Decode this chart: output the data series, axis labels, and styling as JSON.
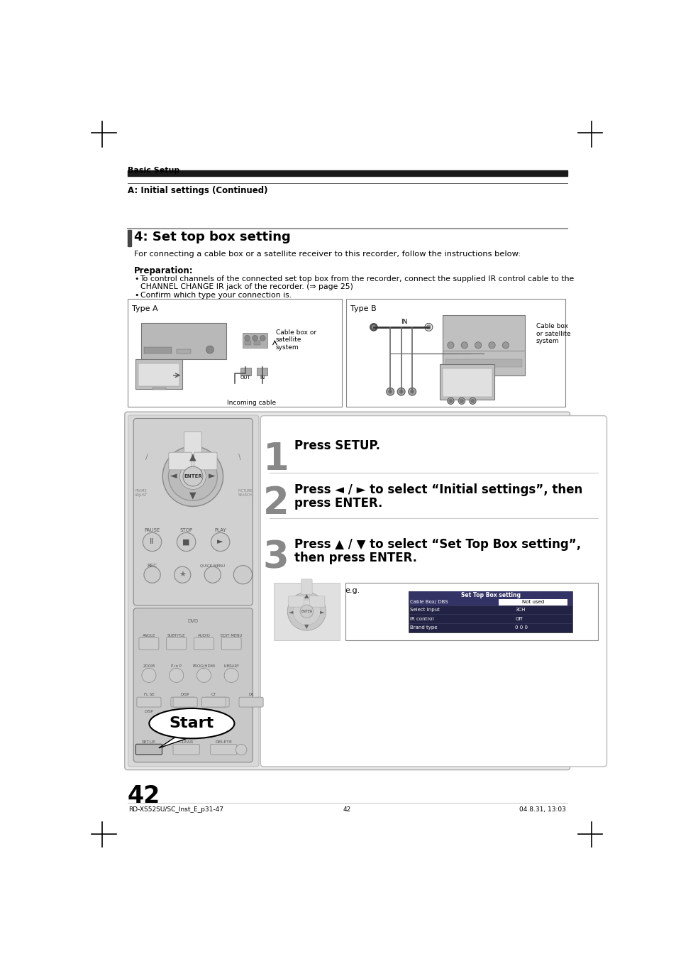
{
  "page_num": "42",
  "left_footer": "RD-XS52SU/SC_Inst_E_p31-47",
  "center_footer": "42",
  "right_footer": "04.8.31, 13:03",
  "section_title": "Basic Setup",
  "subsection_title": "A: Initial settings (Continued)",
  "heading": "4: Set top box setting",
  "heading_intro": "For connecting a cable box or a satellite receiver to this recorder, follow the instructions below:",
  "prep_title": "Preparation:",
  "prep_bullet1_line1": "To control channels of the connected set top box from the recorder, connect the supplied IR control cable to the",
  "prep_bullet1_line2": "CHANNEL CHANGE IR jack of the recorder. (⇒ page 25)",
  "prep_bullet2": "Confirm which type your connection is.",
  "type_a_label": "Type A",
  "type_b_label": "Type B",
  "type_b_cable_label": "Cable box\nor satellite\nsystem",
  "type_b_in_label": "IN",
  "type_a_cable_label": "Cable box or\nsatellite\nsystem",
  "type_a_out_label": "OUT",
  "type_a_in_label": "IN",
  "type_a_incoming": "Incoming cable",
  "step1_text": "Press SETUP.",
  "step2_line1": "Press ◄ / ► to select “Initial settings”, then",
  "step2_line2": "press ENTER.",
  "step3_line1": "Press ▲ / ▼ to select “Set Top Box setting”,",
  "step3_line2": "then press ENTER.",
  "eg_label": "e.g.",
  "screen_title": "Set Top Box setting",
  "screen_row0": [
    "Cable Box/ DBS",
    "Not used"
  ],
  "screen_row1": [
    "Select Input",
    "3CH"
  ],
  "screen_row2": [
    "IR control",
    "Off"
  ],
  "screen_row3": [
    "Brand type",
    "0 0 0"
  ],
  "start_label": "Start",
  "bg_color": "#ffffff",
  "black": "#000000",
  "dark_gray": "#333333",
  "light_gray": "#cccccc",
  "medium_gray": "#888888",
  "remote_bg": "#c8c8c8",
  "remote_body": "#d0d0d0",
  "remote_dark_body": "#303030",
  "header_bar_color": "#1a1a1a",
  "lower_box_bg": "#e8e8e8",
  "instr_box_bg": "#ffffff",
  "screen_header_bg": "#333366",
  "screen_row0_bg": "#333399",
  "screen_highlight_bg": "#4444aa",
  "red_color": "#cc2222"
}
